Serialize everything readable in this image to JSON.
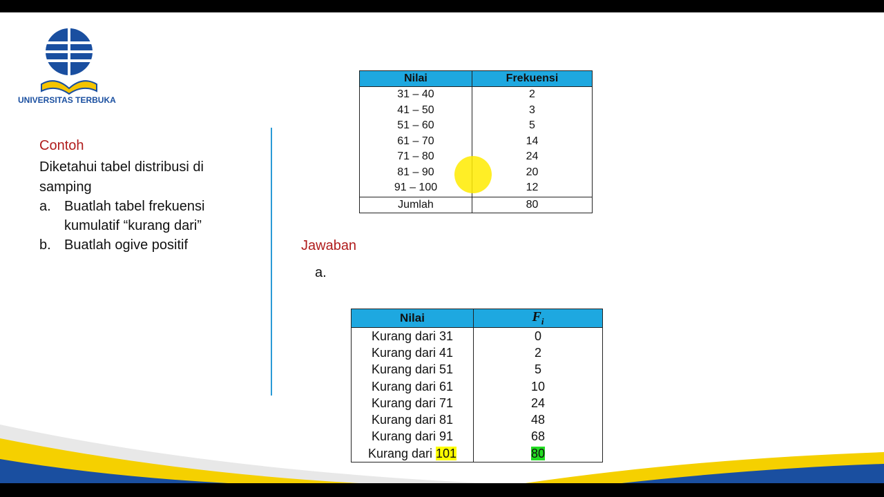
{
  "header": {
    "logo_text": "UNIVERSITAS TERBUKA"
  },
  "example": {
    "title": "Contoh",
    "intro": "Diketahui tabel distribusi di samping",
    "items": [
      {
        "marker": "a.",
        "text": "Buatlah tabel  frekuensi kumulatif “kurang dari”"
      },
      {
        "marker": "b.",
        "text": "Buatlah ogive positif"
      }
    ]
  },
  "table1": {
    "headers": [
      "Nilai",
      "Frekuensi"
    ],
    "rows": [
      [
        "31 – 40",
        "2"
      ],
      [
        "41 – 50",
        "3"
      ],
      [
        "51 – 60",
        "5"
      ],
      [
        "61 – 70",
        "14"
      ],
      [
        "71 – 80",
        "24"
      ],
      [
        "81 – 90",
        "20"
      ],
      [
        "91 – 100",
        "12"
      ]
    ],
    "total": [
      "Jumlah",
      "80"
    ]
  },
  "answer": {
    "title": "Jawaban",
    "part": "a."
  },
  "table2": {
    "headers": {
      "label": "Nilai",
      "symbol": "F",
      "subscript": "i"
    },
    "rows": [
      [
        "Kurang dari 31",
        "0"
      ],
      [
        "Kurang dari 41",
        "2"
      ],
      [
        "Kurang dari 51",
        "5"
      ],
      [
        "Kurang dari 61",
        "10"
      ],
      [
        "Kurang dari 71",
        "24"
      ],
      [
        "Kurang dari 81",
        "48"
      ],
      [
        "Kurang dari 91",
        "68"
      ]
    ],
    "last_row": {
      "prefix": "Kurang dari",
      "highlight": "101",
      "value": "80"
    }
  }
}
